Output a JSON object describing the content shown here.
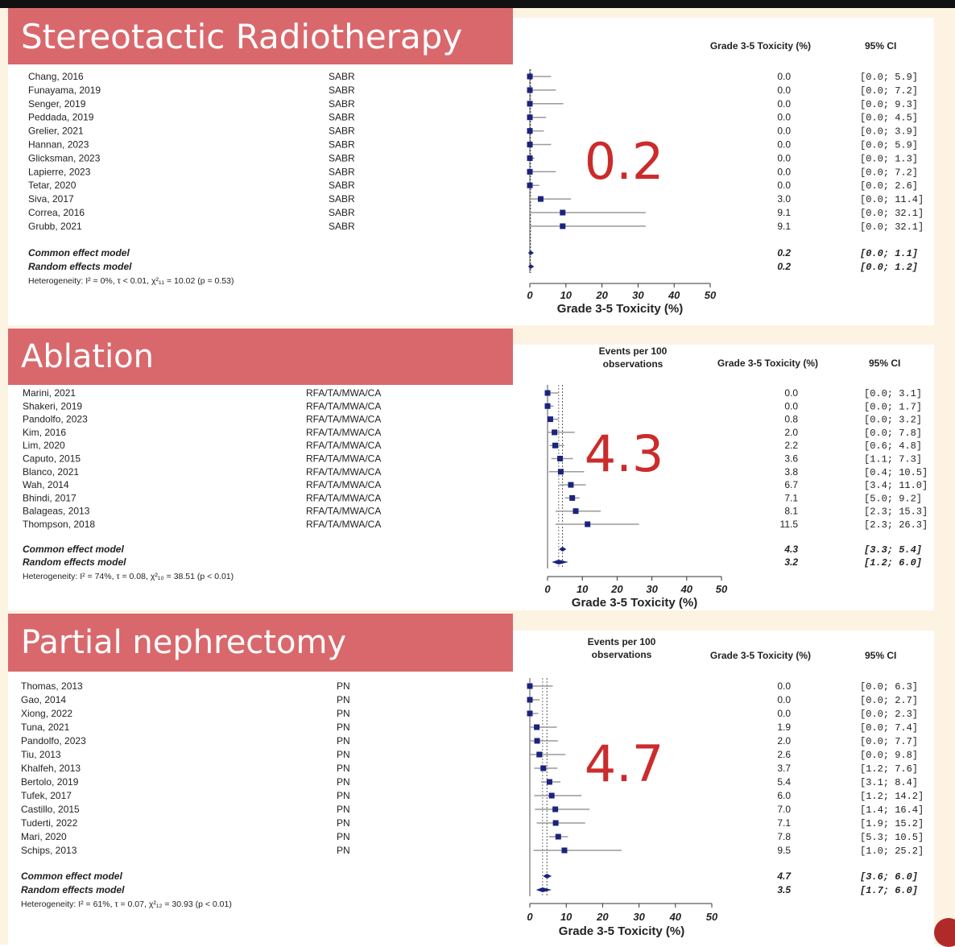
{
  "col_headers": {
    "toxicity": "Grade 3-5 Toxicity (%)",
    "ci": "95% CI",
    "events": [
      "Events per 100",
      "observations"
    ]
  },
  "chart_data": [
    {
      "type": "forest",
      "title": "Stereotactic Radiotherapy",
      "pooled_label": "0.2",
      "xlabel": "Grade 3-5 Toxicity (%)",
      "xlim": [
        0,
        50
      ],
      "xticks": [
        0,
        10,
        20,
        30,
        40,
        50
      ],
      "show_events_header": false,
      "studies": [
        {
          "name": "Chang, 2016",
          "treatment": "SABR",
          "value": 0.0,
          "ci_text": "[0.0;  5.9]",
          "lo": 0.0,
          "hi": 5.9
        },
        {
          "name": "Funayama, 2019",
          "treatment": "SABR",
          "value": 0.0,
          "ci_text": "[0.0;  7.2]",
          "lo": 0.0,
          "hi": 7.2
        },
        {
          "name": "Senger, 2019",
          "treatment": "SABR",
          "value": 0.0,
          "ci_text": "[0.0;  9.3]",
          "lo": 0.0,
          "hi": 9.3
        },
        {
          "name": "Peddada, 2019",
          "treatment": "SABR",
          "value": 0.0,
          "ci_text": "[0.0;  4.5]",
          "lo": 0.0,
          "hi": 4.5
        },
        {
          "name": "Grelier, 2021",
          "treatment": "SABR",
          "value": 0.0,
          "ci_text": "[0.0;  3.9]",
          "lo": 0.0,
          "hi": 3.9
        },
        {
          "name": "Hannan, 2023",
          "treatment": "SABR",
          "value": 0.0,
          "ci_text": "[0.0;  5.9]",
          "lo": 0.0,
          "hi": 5.9
        },
        {
          "name": "Glicksman, 2023",
          "treatment": "SABR",
          "value": 0.0,
          "ci_text": "[0.0;  1.3]",
          "lo": 0.0,
          "hi": 1.3
        },
        {
          "name": "Lapierre, 2023",
          "treatment": "SABR",
          "value": 0.0,
          "ci_text": "[0.0;  7.2]",
          "lo": 0.0,
          "hi": 7.2
        },
        {
          "name": "Tetar, 2020",
          "treatment": "SABR",
          "value": 0.0,
          "ci_text": "[0.0;  2.6]",
          "lo": 0.0,
          "hi": 2.6
        },
        {
          "name": "Siva, 2017",
          "treatment": "SABR",
          "value": 3.0,
          "ci_text": "[0.0; 11.4]",
          "lo": 0.0,
          "hi": 11.4
        },
        {
          "name": "Correa, 2016",
          "treatment": "SABR",
          "value": 9.1,
          "ci_text": "[0.0; 32.1]",
          "lo": 0.0,
          "hi": 32.1
        },
        {
          "name": "Grubb, 2021",
          "treatment": "SABR",
          "value": 9.1,
          "ci_text": "[0.0; 32.1]",
          "lo": 0.0,
          "hi": 32.1
        }
      ],
      "models": [
        {
          "name": "Common effect model",
          "value": 0.2,
          "ci_text": "[0.0;  1.1]",
          "lo": 0.0,
          "hi": 1.1
        },
        {
          "name": "Random effects model",
          "value": 0.2,
          "ci_text": "[0.0;  1.2]",
          "lo": 0.0,
          "hi": 1.2
        }
      ],
      "heterogeneity": "Heterogeneity: I² = 0%, τ < 0.01, χ²₁₁ = 10.02 (p = 0.53)"
    },
    {
      "type": "forest",
      "title": "Ablation",
      "pooled_label": "4.3",
      "xlabel": "Grade 3-5 Toxicity (%)",
      "xlim": [
        0,
        50
      ],
      "xticks": [
        0,
        10,
        20,
        30,
        40,
        50
      ],
      "show_events_header": true,
      "studies": [
        {
          "name": "Marini, 2021",
          "treatment": "RFA/TA/MWA/CA",
          "value": 0.0,
          "ci_text": "[0.0;  3.1]",
          "lo": 0.0,
          "hi": 3.1
        },
        {
          "name": "Shakeri, 2019",
          "treatment": "RFA/TA/MWA/CA",
          "value": 0.0,
          "ci_text": "[0.0;  1.7]",
          "lo": 0.0,
          "hi": 1.7
        },
        {
          "name": "Pandolfo, 2023",
          "treatment": "RFA/TA/MWA/CA",
          "value": 0.8,
          "ci_text": "[0.0;  3.2]",
          "lo": 0.0,
          "hi": 3.2
        },
        {
          "name": "Kim, 2016",
          "treatment": "RFA/TA/MWA/CA",
          "value": 2.0,
          "ci_text": "[0.0;  7.8]",
          "lo": 0.0,
          "hi": 7.8
        },
        {
          "name": "Lim, 2020",
          "treatment": "RFA/TA/MWA/CA",
          "value": 2.2,
          "ci_text": "[0.6;  4.8]",
          "lo": 0.6,
          "hi": 4.8
        },
        {
          "name": "Caputo, 2015",
          "treatment": "RFA/TA/MWA/CA",
          "value": 3.6,
          "ci_text": "[1.1;  7.3]",
          "lo": 1.1,
          "hi": 7.3
        },
        {
          "name": "Blanco, 2021",
          "treatment": "RFA/TA/MWA/CA",
          "value": 3.8,
          "ci_text": "[0.4; 10.5]",
          "lo": 0.4,
          "hi": 10.5
        },
        {
          "name": "Wah, 2014",
          "treatment": "RFA/TA/MWA/CA",
          "value": 6.7,
          "ci_text": "[3.4; 11.0]",
          "lo": 3.4,
          "hi": 11.0
        },
        {
          "name": "Bhindi, 2017",
          "treatment": "RFA/TA/MWA/CA",
          "value": 7.1,
          "ci_text": "[5.0;  9.2]",
          "lo": 5.0,
          "hi": 9.2
        },
        {
          "name": "Balageas, 2013",
          "treatment": "RFA/TA/MWA/CA",
          "value": 8.1,
          "ci_text": "[2.3; 15.3]",
          "lo": 2.3,
          "hi": 15.3
        },
        {
          "name": "Thompson, 2018",
          "treatment": "RFA/TA/MWA/CA",
          "value": 11.5,
          "ci_text": "[2.3; 26.3]",
          "lo": 2.3,
          "hi": 26.3
        }
      ],
      "models": [
        {
          "name": "Common effect model",
          "value": 4.3,
          "ci_text": "[3.3;  5.4]",
          "lo": 3.3,
          "hi": 5.4
        },
        {
          "name": "Random effects model",
          "value": 3.2,
          "ci_text": "[1.2;  6.0]",
          "lo": 1.2,
          "hi": 6.0
        }
      ],
      "heterogeneity": "Heterogeneity: I² = 74%, τ = 0.08, χ²₁₀ = 38.51 (p < 0.01)"
    },
    {
      "type": "forest",
      "title": "Partial nephrectomy",
      "pooled_label": "4.7",
      "xlabel": "Grade 3-5 Toxicity (%)",
      "xlim": [
        0,
        50
      ],
      "xticks": [
        0,
        10,
        20,
        30,
        40,
        50
      ],
      "show_events_header": true,
      "studies": [
        {
          "name": "Thomas, 2013",
          "treatment": "PN",
          "value": 0.0,
          "ci_text": "[0.0;  6.3]",
          "lo": 0.0,
          "hi": 6.3
        },
        {
          "name": "Gao, 2014",
          "treatment": "PN",
          "value": 0.0,
          "ci_text": "[0.0;  2.7]",
          "lo": 0.0,
          "hi": 2.7
        },
        {
          "name": "Xiong, 2022",
          "treatment": "PN",
          "value": 0.0,
          "ci_text": "[0.0;  2.3]",
          "lo": 0.0,
          "hi": 2.3
        },
        {
          "name": "Tuna, 2021",
          "treatment": "PN",
          "value": 1.9,
          "ci_text": "[0.0;  7.4]",
          "lo": 0.0,
          "hi": 7.4
        },
        {
          "name": "Pandolfo, 2023",
          "treatment": "PN",
          "value": 2.0,
          "ci_text": "[0.0;  7.7]",
          "lo": 0.0,
          "hi": 7.7
        },
        {
          "name": "Tiu, 2013",
          "treatment": "PN",
          "value": 2.6,
          "ci_text": "[0.0;  9.8]",
          "lo": 0.0,
          "hi": 9.8
        },
        {
          "name": "Khalfeh, 2013",
          "treatment": "PN",
          "value": 3.7,
          "ci_text": "[1.2;  7.6]",
          "lo": 1.2,
          "hi": 7.6
        },
        {
          "name": "Bertolo, 2019",
          "treatment": "PN",
          "value": 5.4,
          "ci_text": "[3.1;  8.4]",
          "lo": 3.1,
          "hi": 8.4
        },
        {
          "name": "Tufek, 2017",
          "treatment": "PN",
          "value": 6.0,
          "ci_text": "[1.2; 14.2]",
          "lo": 1.2,
          "hi": 14.2
        },
        {
          "name": "Castillo, 2015",
          "treatment": "PN",
          "value": 7.0,
          "ci_text": "[1.4; 16.4]",
          "lo": 1.4,
          "hi": 16.4
        },
        {
          "name": "Tuderti, 2022",
          "treatment": "PN",
          "value": 7.1,
          "ci_text": "[1.9; 15.2]",
          "lo": 1.9,
          "hi": 15.2
        },
        {
          "name": "Mari, 2020",
          "treatment": "PN",
          "value": 7.8,
          "ci_text": "[5.3; 10.5]",
          "lo": 5.3,
          "hi": 10.5
        },
        {
          "name": "Schips, 2013",
          "treatment": "PN",
          "value": 9.5,
          "ci_text": "[1.0; 25.2]",
          "lo": 1.0,
          "hi": 25.2
        }
      ],
      "models": [
        {
          "name": "Common effect model",
          "value": 4.7,
          "ci_text": "[3.6;  6.0]",
          "lo": 3.6,
          "hi": 6.0
        },
        {
          "name": "Random effects model",
          "value": 3.5,
          "ci_text": "[1.7;  6.0]",
          "lo": 1.7,
          "hi": 6.0
        }
      ],
      "heterogeneity": "Heterogeneity: I² = 61%, τ = 0.07, χ²₁₂ = 30.93 (p < 0.01)"
    }
  ],
  "colors": {
    "banner": "#d9686c",
    "pooled_label": "#cc2b2b",
    "marker": "#1a237e",
    "ci_line": "#9a9a9a",
    "text": "#222222"
  }
}
